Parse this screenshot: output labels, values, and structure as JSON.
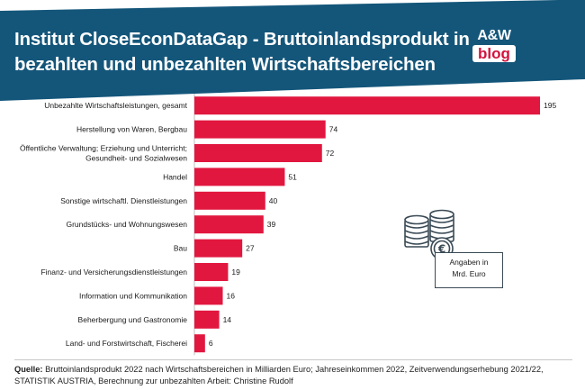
{
  "header": {
    "title_line1": "Institut CloseEconDataGap - Bruttoinlandsprodukt in",
    "title_line2": "bezahlten und unbezahlten Wirtschaftsbereichen",
    "bg_color": "#14567a"
  },
  "logo": {
    "top": "A&W",
    "bottom": "blog",
    "color": "#d3123d"
  },
  "note": {
    "line1": "Angaben in",
    "line2": "Mrd. Euro"
  },
  "coin_icon": "coins-euro-icon",
  "chart_data": {
    "type": "bar",
    "orientation": "horizontal",
    "bar_color": "#e1173f",
    "categories": [
      "Unbezahlte Wirtschaftsleistungen, gesamt",
      "Herstellung von Waren, Bergbau",
      "Öffentliche Verwaltung; Erziehung und Unterricht;\nGesundheit- und Sozialwesen",
      "Handel",
      "Sonstige wirtschaftl. Dienstleistungen",
      "Grundstücks- und Wohnungswesen",
      "Bau",
      "Finanz- und Versicherungsdienstleistungen",
      "Information und Kommunikation",
      "Beherbergung und Gastronomie",
      "Land- und Forstwirtschaft, Fischerei"
    ],
    "values": [
      195,
      74,
      72,
      51,
      40,
      39,
      27,
      19,
      16,
      14,
      6
    ],
    "value_labels": [
      "195",
      "74",
      "72",
      "51",
      "40",
      "39",
      "27",
      "19",
      "16",
      "14",
      "6"
    ],
    "xlim": [
      0,
      195
    ],
    "grid": false,
    "legend": "none"
  },
  "source": {
    "label": "Quelle:",
    "text": " Bruttoinlandsprodukt 2022 nach Wirtschaftsbereichen in Milliarden Euro; Jahreseinkommen 2022, Zeitverwendungserhebung 2021/22, STATISTIK AUSTRIA, Berechnung zur unbezahlten Arbeit: Christine Rudolf"
  }
}
